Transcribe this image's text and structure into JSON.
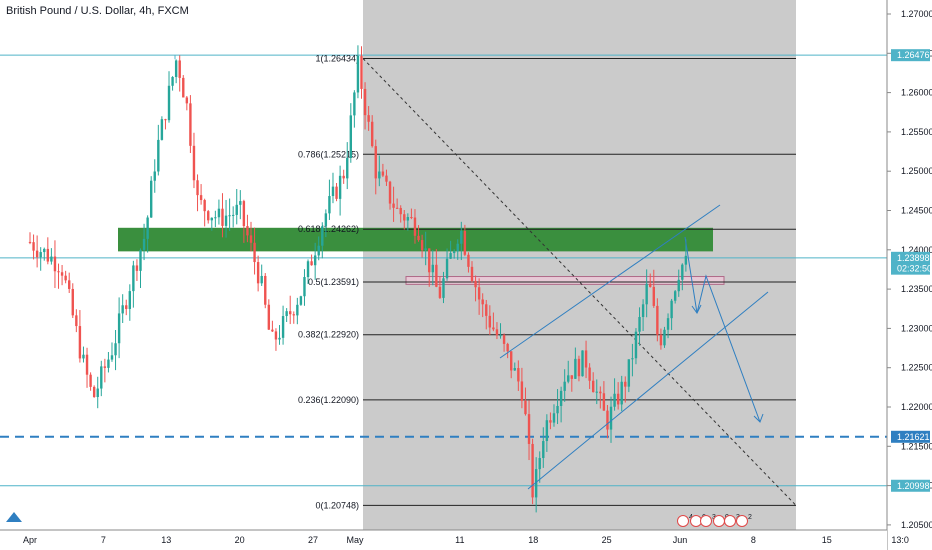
{
  "header": {
    "title": "British Pound / U.S. Dollar, 4h, FXCM"
  },
  "chart_data": {
    "type": "candlestick",
    "title": "British Pound / U.S. Dollar, 4h, FXCM",
    "y_ticks": [
      "1.27000",
      "1.26500",
      "1.26000",
      "1.25500",
      "1.25000",
      "1.24500",
      "1.24000",
      "1.23500",
      "1.23000",
      "1.22500",
      "1.22000",
      "1.21500",
      "1.21000",
      "1.20500"
    ],
    "y_tick_values": [
      1.27,
      1.265,
      1.26,
      1.255,
      1.25,
      1.245,
      1.24,
      1.235,
      1.23,
      1.225,
      1.22,
      1.215,
      1.21,
      1.205
    ],
    "x_ticks": [
      "Apr",
      "7",
      "13",
      "20",
      "27",
      "May",
      "11",
      "18",
      "25",
      "Jun",
      "8",
      "15",
      "13:0"
    ],
    "x_tick_days": [
      0,
      7,
      13,
      20,
      27,
      31,
      41,
      48,
      55,
      62,
      69,
      76,
      83
    ],
    "fib_levels": [
      {
        "label": "1(1.26434)",
        "value": 1.26434
      },
      {
        "label": "0.786(1.25215)",
        "value": 1.25215
      },
      {
        "label": "0.618(1.24262)",
        "value": 1.24262
      },
      {
        "label": "0.5(1.23591)",
        "value": 1.23591
      },
      {
        "label": "0.382(1.22920)",
        "value": 1.2292
      },
      {
        "label": "0.236(1.22090)",
        "value": 1.2209
      },
      {
        "label": "0(1.20748)",
        "value": 1.20748
      }
    ],
    "price_tags": [
      {
        "label": "1.26476",
        "value": 1.26476,
        "color": "#4fb3c8"
      },
      {
        "label": "1.23898",
        "value": 1.23898,
        "color": "#4fb3c8"
      },
      {
        "label": "02:32:50",
        "value": 1.2376,
        "color": "#4fb3c8"
      },
      {
        "label": "1.21621",
        "value": 1.21621,
        "color": "#2f7fc1"
      },
      {
        "label": "1.20998",
        "value": 1.20998,
        "color": "#4fb3c8"
      }
    ],
    "horizontal_lines": [
      {
        "value": 1.26476,
        "style": "solid",
        "color": "#4fb3c8"
      },
      {
        "value": 1.23898,
        "style": "solid",
        "color": "#4fb3c8"
      },
      {
        "value": 1.21621,
        "style": "dashed",
        "color": "#2f7fc1"
      },
      {
        "value": 1.20998,
        "style": "solid",
        "color": "#4fb3c8"
      }
    ],
    "zones": [
      {
        "y1": 1.2428,
        "y2": 1.2398,
        "color": "#3a8f3e"
      },
      {
        "y1": 1.2366,
        "y2": 1.2356,
        "color": "#e7c9d6"
      }
    ],
    "volume_badges": [
      "4",
      "6",
      "3",
      "0",
      "3",
      "2"
    ],
    "legend": "none",
    "grid": false
  }
}
